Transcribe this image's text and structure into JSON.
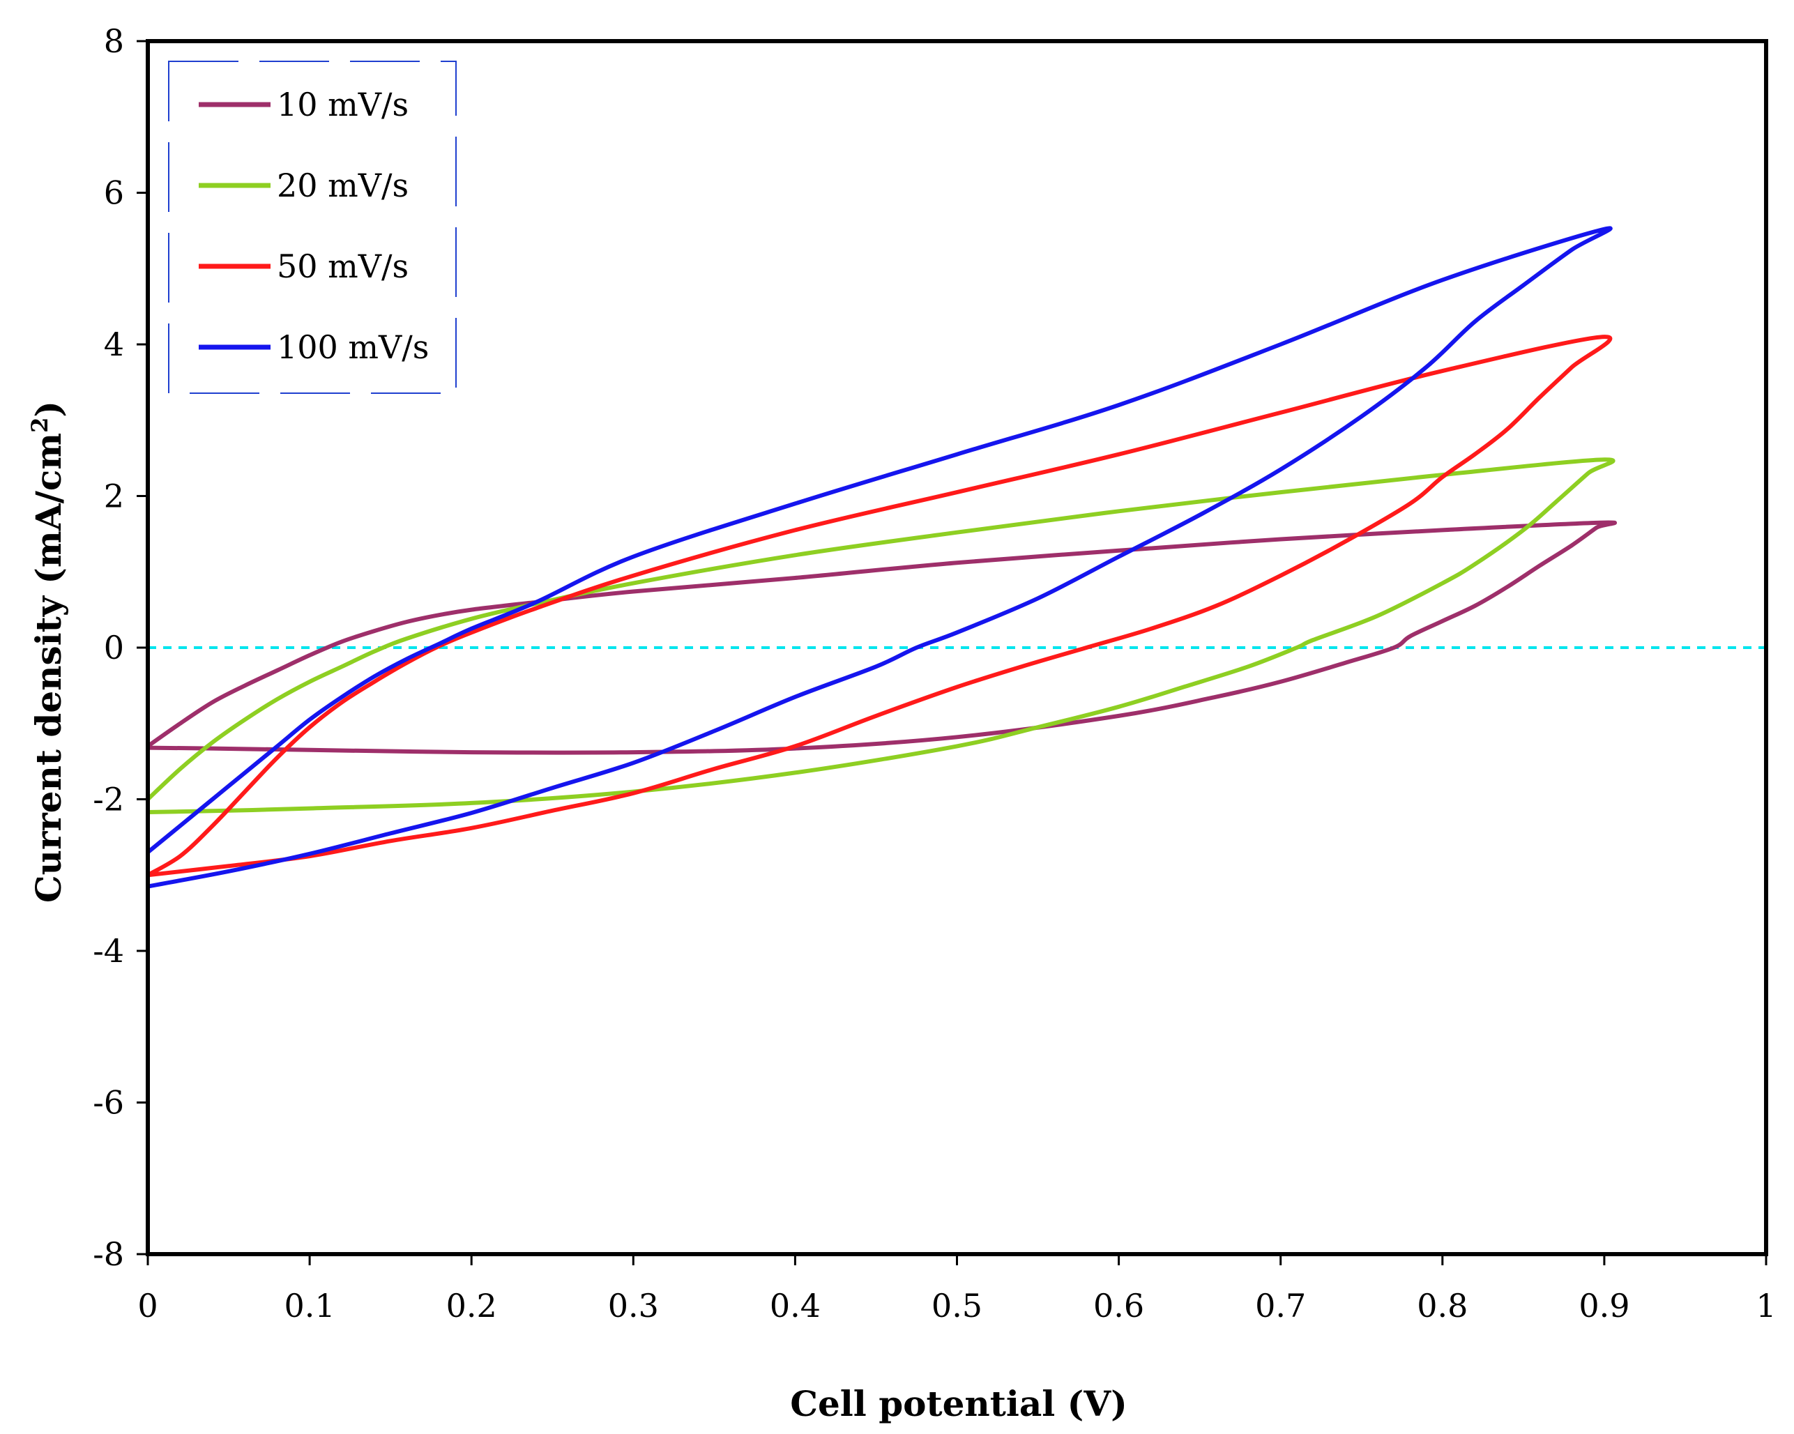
{
  "chart_data": {
    "type": "line",
    "title": "",
    "xlabel": "Cell potential (V)",
    "ylabel": {
      "main": "Current density (mA/cm",
      "sup": "2",
      "close": ")"
    },
    "xlim": [
      0,
      1
    ],
    "ylim": [
      -8,
      8
    ],
    "xticks": [
      "0",
      "0.1",
      "0.2",
      "0.3",
      "0.4",
      "0.5",
      "0.6",
      "0.7",
      "0.8",
      "0.9",
      "1"
    ],
    "yticks": [
      "8",
      "6",
      "4",
      "2",
      "0",
      "-2",
      "-4",
      "-6",
      "-8"
    ],
    "grid": false,
    "legend": "top-left",
    "reference_line": {
      "y": 0,
      "color": "#00e5ee",
      "style": "dashed"
    },
    "series": [
      {
        "name": "10 mV/s",
        "color": "#9e2f6a",
        "points": [
          [
            0,
            -1.3
          ],
          [
            0.02,
            -1.0
          ],
          [
            0.04,
            -0.72
          ],
          [
            0.06,
            -0.5
          ],
          [
            0.08,
            -0.3
          ],
          [
            0.1,
            -0.1
          ],
          [
            0.12,
            0.08
          ],
          [
            0.14,
            0.22
          ],
          [
            0.16,
            0.34
          ],
          [
            0.18,
            0.43
          ],
          [
            0.2,
            0.5
          ],
          [
            0.24,
            0.6
          ],
          [
            0.3,
            0.74
          ],
          [
            0.4,
            0.92
          ],
          [
            0.5,
            1.12
          ],
          [
            0.6,
            1.28
          ],
          [
            0.7,
            1.43
          ],
          [
            0.8,
            1.55
          ],
          [
            0.9,
            1.65
          ],
          [
            0.895,
            1.58
          ],
          [
            0.88,
            1.35
          ],
          [
            0.86,
            1.08
          ],
          [
            0.84,
            0.8
          ],
          [
            0.82,
            0.55
          ],
          [
            0.8,
            0.35
          ],
          [
            0.78,
            0.15
          ],
          [
            0.77,
            0.0
          ],
          [
            0.74,
            -0.2
          ],
          [
            0.7,
            -0.45
          ],
          [
            0.66,
            -0.65
          ],
          [
            0.6,
            -0.9
          ],
          [
            0.5,
            -1.18
          ],
          [
            0.4,
            -1.33
          ],
          [
            0.3,
            -1.38
          ],
          [
            0.2,
            -1.38
          ],
          [
            0.1,
            -1.35
          ],
          [
            0.04,
            -1.33
          ],
          [
            0.0,
            -1.32
          ]
        ]
      },
      {
        "name": "20 mV/s",
        "color": "#8ecf22",
        "points": [
          [
            0,
            -2.0
          ],
          [
            0.02,
            -1.6
          ],
          [
            0.04,
            -1.25
          ],
          [
            0.06,
            -0.95
          ],
          [
            0.08,
            -0.68
          ],
          [
            0.1,
            -0.45
          ],
          [
            0.12,
            -0.25
          ],
          [
            0.14,
            -0.05
          ],
          [
            0.16,
            0.12
          ],
          [
            0.2,
            0.38
          ],
          [
            0.24,
            0.58
          ],
          [
            0.3,
            0.85
          ],
          [
            0.4,
            1.22
          ],
          [
            0.5,
            1.52
          ],
          [
            0.6,
            1.8
          ],
          [
            0.7,
            2.05
          ],
          [
            0.8,
            2.28
          ],
          [
            0.9,
            2.48
          ],
          [
            0.89,
            2.3
          ],
          [
            0.87,
            1.92
          ],
          [
            0.85,
            1.55
          ],
          [
            0.82,
            1.1
          ],
          [
            0.8,
            0.85
          ],
          [
            0.76,
            0.42
          ],
          [
            0.72,
            0.1
          ],
          [
            0.71,
            0.0
          ],
          [
            0.68,
            -0.25
          ],
          [
            0.64,
            -0.52
          ],
          [
            0.6,
            -0.78
          ],
          [
            0.55,
            -1.05
          ],
          [
            0.5,
            -1.3
          ],
          [
            0.4,
            -1.65
          ],
          [
            0.3,
            -1.9
          ],
          [
            0.2,
            -2.05
          ],
          [
            0.1,
            -2.12
          ],
          [
            0.05,
            -2.15
          ],
          [
            0.0,
            -2.17
          ]
        ]
      },
      {
        "name": "50 mV/s",
        "color": "#ff1a1a",
        "points": [
          [
            0,
            -3.0
          ],
          [
            0.02,
            -2.75
          ],
          [
            0.04,
            -2.35
          ],
          [
            0.06,
            -1.9
          ],
          [
            0.08,
            -1.45
          ],
          [
            0.1,
            -1.05
          ],
          [
            0.12,
            -0.72
          ],
          [
            0.14,
            -0.45
          ],
          [
            0.16,
            -0.2
          ],
          [
            0.18,
            0.02
          ],
          [
            0.2,
            0.2
          ],
          [
            0.24,
            0.52
          ],
          [
            0.3,
            0.95
          ],
          [
            0.4,
            1.55
          ],
          [
            0.5,
            2.05
          ],
          [
            0.6,
            2.55
          ],
          [
            0.7,
            3.1
          ],
          [
            0.8,
            3.65
          ],
          [
            0.9,
            4.1
          ],
          [
            0.88,
            3.7
          ],
          [
            0.86,
            3.3
          ],
          [
            0.84,
            2.88
          ],
          [
            0.82,
            2.55
          ],
          [
            0.8,
            2.25
          ],
          [
            0.78,
            1.9
          ],
          [
            0.74,
            1.4
          ],
          [
            0.7,
            0.95
          ],
          [
            0.66,
            0.55
          ],
          [
            0.62,
            0.25
          ],
          [
            0.58,
            0.0
          ],
          [
            0.54,
            -0.25
          ],
          [
            0.5,
            -0.52
          ],
          [
            0.45,
            -0.9
          ],
          [
            0.4,
            -1.3
          ],
          [
            0.35,
            -1.6
          ],
          [
            0.3,
            -1.92
          ],
          [
            0.25,
            -2.15
          ],
          [
            0.2,
            -2.38
          ],
          [
            0.15,
            -2.55
          ],
          [
            0.1,
            -2.75
          ],
          [
            0.05,
            -2.88
          ],
          [
            0.0,
            -3.0
          ]
        ]
      },
      {
        "name": "100 mV/s",
        "color": "#1515ee",
        "points": [
          [
            0,
            -2.7
          ],
          [
            0.02,
            -2.35
          ],
          [
            0.04,
            -2.0
          ],
          [
            0.06,
            -1.65
          ],
          [
            0.08,
            -1.3
          ],
          [
            0.1,
            -0.95
          ],
          [
            0.12,
            -0.65
          ],
          [
            0.14,
            -0.38
          ],
          [
            0.16,
            -0.15
          ],
          [
            0.18,
            0.05
          ],
          [
            0.2,
            0.25
          ],
          [
            0.24,
            0.6
          ],
          [
            0.3,
            1.2
          ],
          [
            0.4,
            1.9
          ],
          [
            0.5,
            2.55
          ],
          [
            0.6,
            3.2
          ],
          [
            0.7,
            4.0
          ],
          [
            0.8,
            4.85
          ],
          [
            0.9,
            5.52
          ],
          [
            0.88,
            5.25
          ],
          [
            0.85,
            4.78
          ],
          [
            0.82,
            4.3
          ],
          [
            0.79,
            3.7
          ],
          [
            0.75,
            3.05
          ],
          [
            0.7,
            2.35
          ],
          [
            0.65,
            1.75
          ],
          [
            0.6,
            1.2
          ],
          [
            0.55,
            0.65
          ],
          [
            0.5,
            0.2
          ],
          [
            0.475,
            0.0
          ],
          [
            0.45,
            -0.25
          ],
          [
            0.4,
            -0.65
          ],
          [
            0.35,
            -1.1
          ],
          [
            0.3,
            -1.52
          ],
          [
            0.25,
            -1.85
          ],
          [
            0.2,
            -2.18
          ],
          [
            0.15,
            -2.45
          ],
          [
            0.1,
            -2.72
          ],
          [
            0.05,
            -2.95
          ],
          [
            0.0,
            -3.15
          ]
        ]
      }
    ]
  }
}
